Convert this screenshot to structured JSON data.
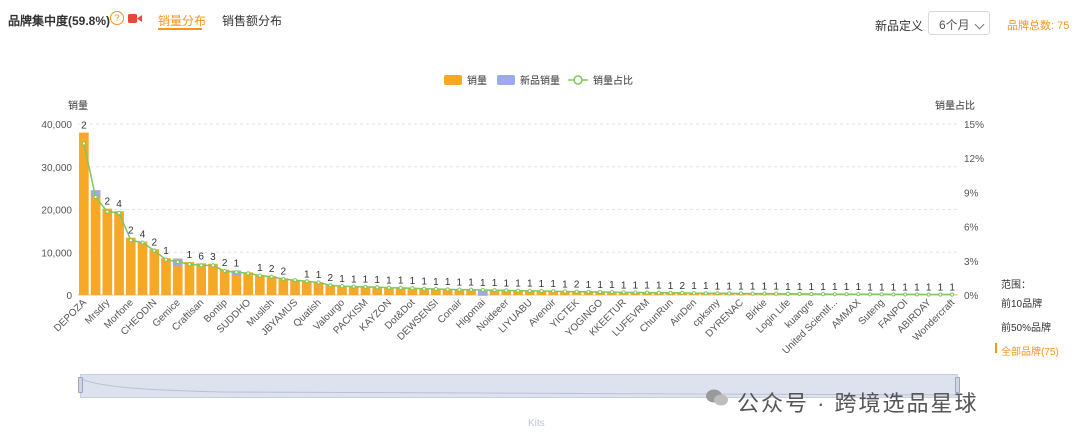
{
  "header": {
    "title": "品牌集中度(59.8%)",
    "help_icon": "question-circle-icon",
    "video_icon": "video-icon",
    "tabs": [
      {
        "label": "销量分布",
        "active": true
      },
      {
        "label": "销售额分布",
        "active": false
      }
    ],
    "new_product_label": "新品定义",
    "period_select": {
      "value": "6个月"
    },
    "brand_total": "品牌总数: 75"
  },
  "range_panel": {
    "title": "范围：",
    "options": [
      {
        "label": "前10品牌",
        "active": false
      },
      {
        "label": "前50%品牌",
        "active": false
      },
      {
        "label": "全部品牌(75)",
        "active": true
      }
    ]
  },
  "slider": {
    "label": "Kits",
    "start": 0,
    "end": 1
  },
  "watermark": {
    "text": "公众号 · 跨境选品星球"
  },
  "colors": {
    "sales": "#f7a825",
    "new_sales": "#9ea8ec",
    "share": "#7ec85b",
    "accent": "#f7941d"
  },
  "chart_data": {
    "type": "bar",
    "legend": [
      "销量",
      "新品销量",
      "销量占比"
    ],
    "legend_position": "top-center",
    "ylabel_left": "销量",
    "ylabel_right": "销量占比",
    "y_left_ticks": [
      "0",
      "10,000",
      "20,000",
      "30,000",
      "40,000"
    ],
    "y_right_ticks": [
      "0%",
      "3%",
      "6%",
      "9%",
      "12%",
      "15%"
    ],
    "ylim_left": [
      0,
      40000
    ],
    "ylim_right": [
      0,
      15
    ],
    "grid": true,
    "x_tick_labels": [
      "DEPOZA",
      "Mrsdry",
      "Morfone",
      "CHEODIN",
      "Gemice",
      "Craftisan",
      "Bontip",
      "SUDDHO",
      "Muslish",
      "JBYAMUS",
      "Quatish",
      "Valourgo",
      "PACKISM",
      "KAYZON",
      "Dot&Dot",
      "DEWSENSI",
      "Conair",
      "Higomai",
      "Noideeer",
      "LIYUABU",
      "Avenoir",
      "YICTEK",
      "YOGINGO",
      "KKEETUR",
      "LUFEVRM",
      "ChunRun",
      "AinDen",
      "cpksmy",
      "DYRENAC",
      "Birkie",
      "Login Life",
      "kuangre",
      "United Scientif...",
      "AMMAX",
      "Suteng",
      "FANPOI",
      "ABIRDAY",
      "Wondercraft"
    ],
    "tick_every": 2,
    "sales": [
      38000,
      24500,
      20200,
      19600,
      13400,
      12500,
      10700,
      8600,
      8500,
      7700,
      7400,
      7300,
      5900,
      5700,
      5300,
      4700,
      4400,
      3900,
      3500,
      3200,
      3000,
      2300,
      2100,
      2000,
      1950,
      1850,
      1750,
      1700,
      1600,
      1500,
      1450,
      1350,
      1300,
      1250,
      1200,
      1150,
      1100,
      1050,
      1000,
      950,
      900,
      850,
      800,
      760,
      720,
      680,
      640,
      600,
      570,
      540,
      510,
      480,
      450,
      420,
      400,
      380,
      360,
      340,
      320,
      300,
      280,
      260,
      240,
      220,
      200,
      190,
      180,
      170,
      160,
      150,
      140,
      130,
      120,
      110,
      100
    ],
    "new_sales": [
      0,
      1500,
      0,
      0,
      0,
      0,
      0,
      0,
      1800,
      0,
      0,
      0,
      0,
      1200,
      0,
      0,
      0,
      0,
      0,
      0,
      0,
      0,
      0,
      0,
      0,
      0,
      0,
      0,
      0,
      0,
      0,
      0,
      0,
      0,
      1400,
      0,
      0,
      0,
      0,
      0,
      0,
      0,
      0,
      0,
      0,
      0,
      0,
      0,
      0,
      0,
      0,
      0,
      0,
      0,
      0,
      0,
      0,
      0,
      0,
      0,
      0,
      0,
      0,
      0,
      0,
      0,
      0,
      0,
      0,
      0,
      0,
      0,
      0,
      0,
      0
    ],
    "share": [
      13.3,
      8.6,
      7.3,
      7.2,
      4.8,
      4.6,
      3.9,
      3.1,
      2.9,
      2.7,
      2.6,
      2.6,
      2.1,
      2.0,
      1.9,
      1.7,
      1.6,
      1.4,
      1.3,
      1.2,
      1.1,
      0.85,
      0.78,
      0.74,
      0.72,
      0.68,
      0.64,
      0.62,
      0.59,
      0.55,
      0.53,
      0.49,
      0.47,
      0.46,
      0.44,
      0.42,
      0.4,
      0.38,
      0.36,
      0.35,
      0.33,
      0.31,
      0.29,
      0.28,
      0.26,
      0.25,
      0.23,
      0.22,
      0.21,
      0.2,
      0.19,
      0.18,
      0.16,
      0.15,
      0.15,
      0.14,
      0.13,
      0.12,
      0.12,
      0.11,
      0.1,
      0.1,
      0.09,
      0.08,
      0.07,
      0.07,
      0.07,
      0.06,
      0.06,
      0.05,
      0.05,
      0.05,
      0.04,
      0.04,
      0.04
    ],
    "bar_labels": [
      "2",
      "",
      "2",
      "4",
      "2",
      "4",
      "2",
      "1",
      "",
      "1",
      "6",
      "3",
      "2",
      "1",
      "",
      "1",
      "2",
      "2",
      "",
      "1",
      "1",
      "2",
      "1",
      "1",
      "1",
      "1",
      "1",
      "1",
      "1",
      "1",
      "1",
      "1",
      "1",
      "1",
      "1",
      "1",
      "1",
      "1",
      "1",
      "1",
      "1",
      "1",
      "2",
      "1",
      "1",
      "1",
      "1",
      "1",
      "1",
      "1",
      "1",
      "2",
      "1",
      "1",
      "1",
      "1",
      "1",
      "1",
      "1",
      "1",
      "1",
      "1",
      "1",
      "1",
      "1",
      "1",
      "1",
      "1",
      "1",
      "1",
      "1",
      "1",
      "1",
      "1",
      "1"
    ]
  }
}
